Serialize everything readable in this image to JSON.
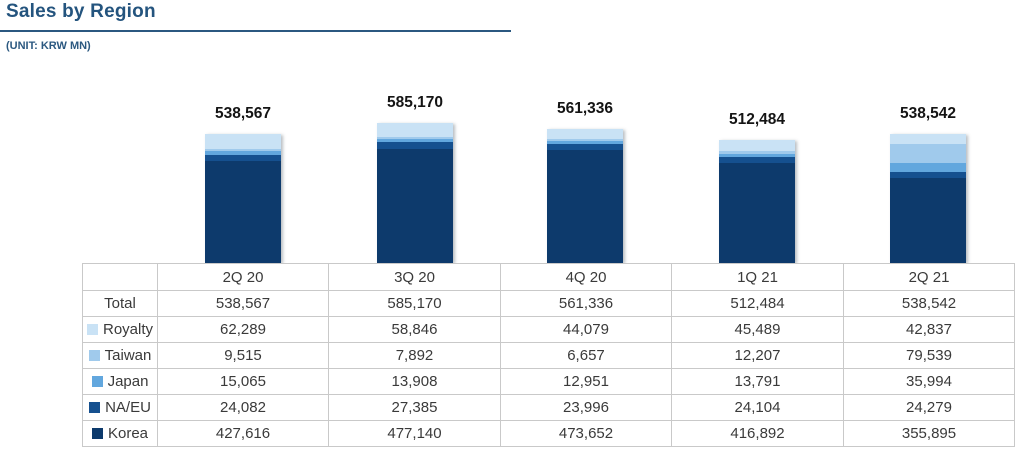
{
  "title": "Sales by Region",
  "unit": "(UNIT: KRW MN)",
  "chart_data": {
    "type": "bar",
    "stacked": true,
    "title": "Sales by Region",
    "unit": "(UNIT: KRW MN)",
    "categories": [
      "2Q 20",
      "3Q 20",
      "4Q 20",
      "1Q 21",
      "2Q 21"
    ],
    "series": [
      {
        "name": "Korea",
        "color": "#0D3A6C",
        "values": [
          427616,
          477140,
          473652,
          416892,
          355895
        ]
      },
      {
        "name": "NA/EU",
        "color": "#15508F",
        "values": [
          24082,
          27385,
          23996,
          24104,
          24279
        ]
      },
      {
        "name": "Japan",
        "color": "#62A7DE",
        "values": [
          15065,
          13908,
          12951,
          13791,
          35994
        ]
      },
      {
        "name": "Taiwan",
        "color": "#A0CAEC",
        "values": [
          9515,
          7892,
          6657,
          12207,
          79539
        ]
      },
      {
        "name": "Royalty",
        "color": "#C9E2F5",
        "values": [
          62289,
          58846,
          44079,
          45489,
          42837
        ]
      }
    ],
    "totals": [
      538567,
      585170,
      561336,
      512484,
      538542
    ],
    "totals_formatted": [
      "538,567",
      "585,170",
      "561,336",
      "512,484",
      "538,542"
    ],
    "legend_position": "table-rows",
    "grid": false,
    "ylim": [
      0,
      600000
    ]
  },
  "table": {
    "header": [
      "2Q 20",
      "3Q 20",
      "4Q 20",
      "1Q 21",
      "2Q 21"
    ],
    "rows": [
      {
        "label": "Total",
        "swatch": null,
        "values": [
          "538,567",
          "585,170",
          "561,336",
          "512,484",
          "538,542"
        ]
      },
      {
        "label": "Royalty",
        "swatch": "#C9E2F5",
        "values": [
          "62,289",
          "58,846",
          "44,079",
          "45,489",
          "42,837"
        ]
      },
      {
        "label": "Taiwan",
        "swatch": "#A0CAEC",
        "values": [
          "9,515",
          "7,892",
          "6,657",
          "12,207",
          "79,539"
        ]
      },
      {
        "label": "Japan",
        "swatch": "#62A7DE",
        "values": [
          "15,065",
          "13,908",
          "12,951",
          "13,791",
          "35,994"
        ]
      },
      {
        "label": "NA/EU",
        "swatch": "#15508F",
        "values": [
          "24,082",
          "27,385",
          "23,996",
          "24,104",
          "24,279"
        ]
      },
      {
        "label": "Korea",
        "swatch": "#0D3A6C",
        "values": [
          "427,616",
          "477,140",
          "473,652",
          "416,892",
          "355,895"
        ]
      }
    ]
  }
}
